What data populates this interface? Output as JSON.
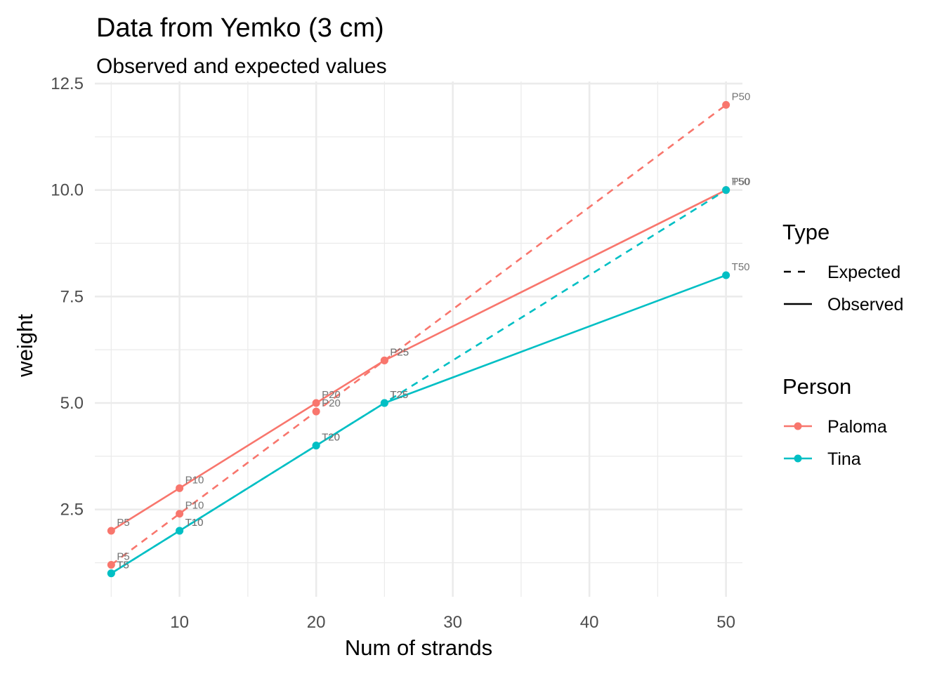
{
  "chart_data": {
    "type": "line",
    "title": "Data from Yemko (3 cm)",
    "subtitle": "Observed and expected values",
    "xlabel": "Num of strands",
    "ylabel": "weight",
    "xlim": [
      3.8,
      51.2
    ],
    "ylim": [
      0.45,
      12.55
    ],
    "x_ticks": [
      10,
      20,
      30,
      40,
      50
    ],
    "y_ticks": [
      2.5,
      5.0,
      7.5,
      10.0,
      12.5
    ],
    "x_tick_labels": [
      "10",
      "20",
      "30",
      "40",
      "50"
    ],
    "y_tick_labels": [
      "2.5",
      "5.0",
      "7.5",
      "10.0",
      "12.5"
    ],
    "x_minor": [
      5,
      15,
      25,
      35,
      45
    ],
    "y_minor": [
      1.25,
      3.75,
      6.25,
      8.75,
      11.25
    ],
    "grid": true,
    "legend_position": "right",
    "legends": [
      {
        "title": "Type",
        "kind": "linetype",
        "entries": [
          {
            "label": "Expected",
            "style": "dashed"
          },
          {
            "label": "Observed",
            "style": "solid"
          }
        ]
      },
      {
        "title": "Person",
        "kind": "colour",
        "entries": [
          {
            "label": "Paloma",
            "color": "#F8766D"
          },
          {
            "label": "Tina",
            "color": "#00BFC4"
          }
        ]
      }
    ],
    "series": [
      {
        "person": "Paloma",
        "type": "Expected",
        "color": "#F8766D",
        "style": "dashed",
        "x": [
          5,
          10,
          20,
          25,
          50
        ],
        "y": [
          1.2,
          2.4,
          4.8,
          6.0,
          12.0
        ],
        "labels": [
          "P5",
          "P10",
          "P20",
          "P25",
          "P50"
        ]
      },
      {
        "person": "Paloma",
        "type": "Observed",
        "color": "#F8766D",
        "style": "solid",
        "x": [
          5,
          10,
          20,
          25,
          50
        ],
        "y": [
          2.0,
          3.0,
          5.0,
          6.0,
          10.0
        ],
        "labels": [
          "P5",
          "P10",
          "P20",
          "P25",
          "P50"
        ]
      },
      {
        "person": "Tina",
        "type": "Expected",
        "color": "#00BFC4",
        "style": "dashed",
        "x": [
          5,
          10,
          20,
          25,
          50
        ],
        "y": [
          1.0,
          2.0,
          4.0,
          5.0,
          10.0
        ],
        "labels": [
          "T5",
          "T10",
          "T20",
          "T25",
          "T50"
        ]
      },
      {
        "person": "Tina",
        "type": "Observed",
        "color": "#00BFC4",
        "style": "solid",
        "x": [
          5,
          10,
          20,
          25,
          50
        ],
        "y": [
          1.0,
          2.0,
          4.0,
          5.0,
          8.0
        ],
        "labels": [
          "T5",
          "T10",
          "T20",
          "T25",
          "T50"
        ]
      }
    ]
  }
}
